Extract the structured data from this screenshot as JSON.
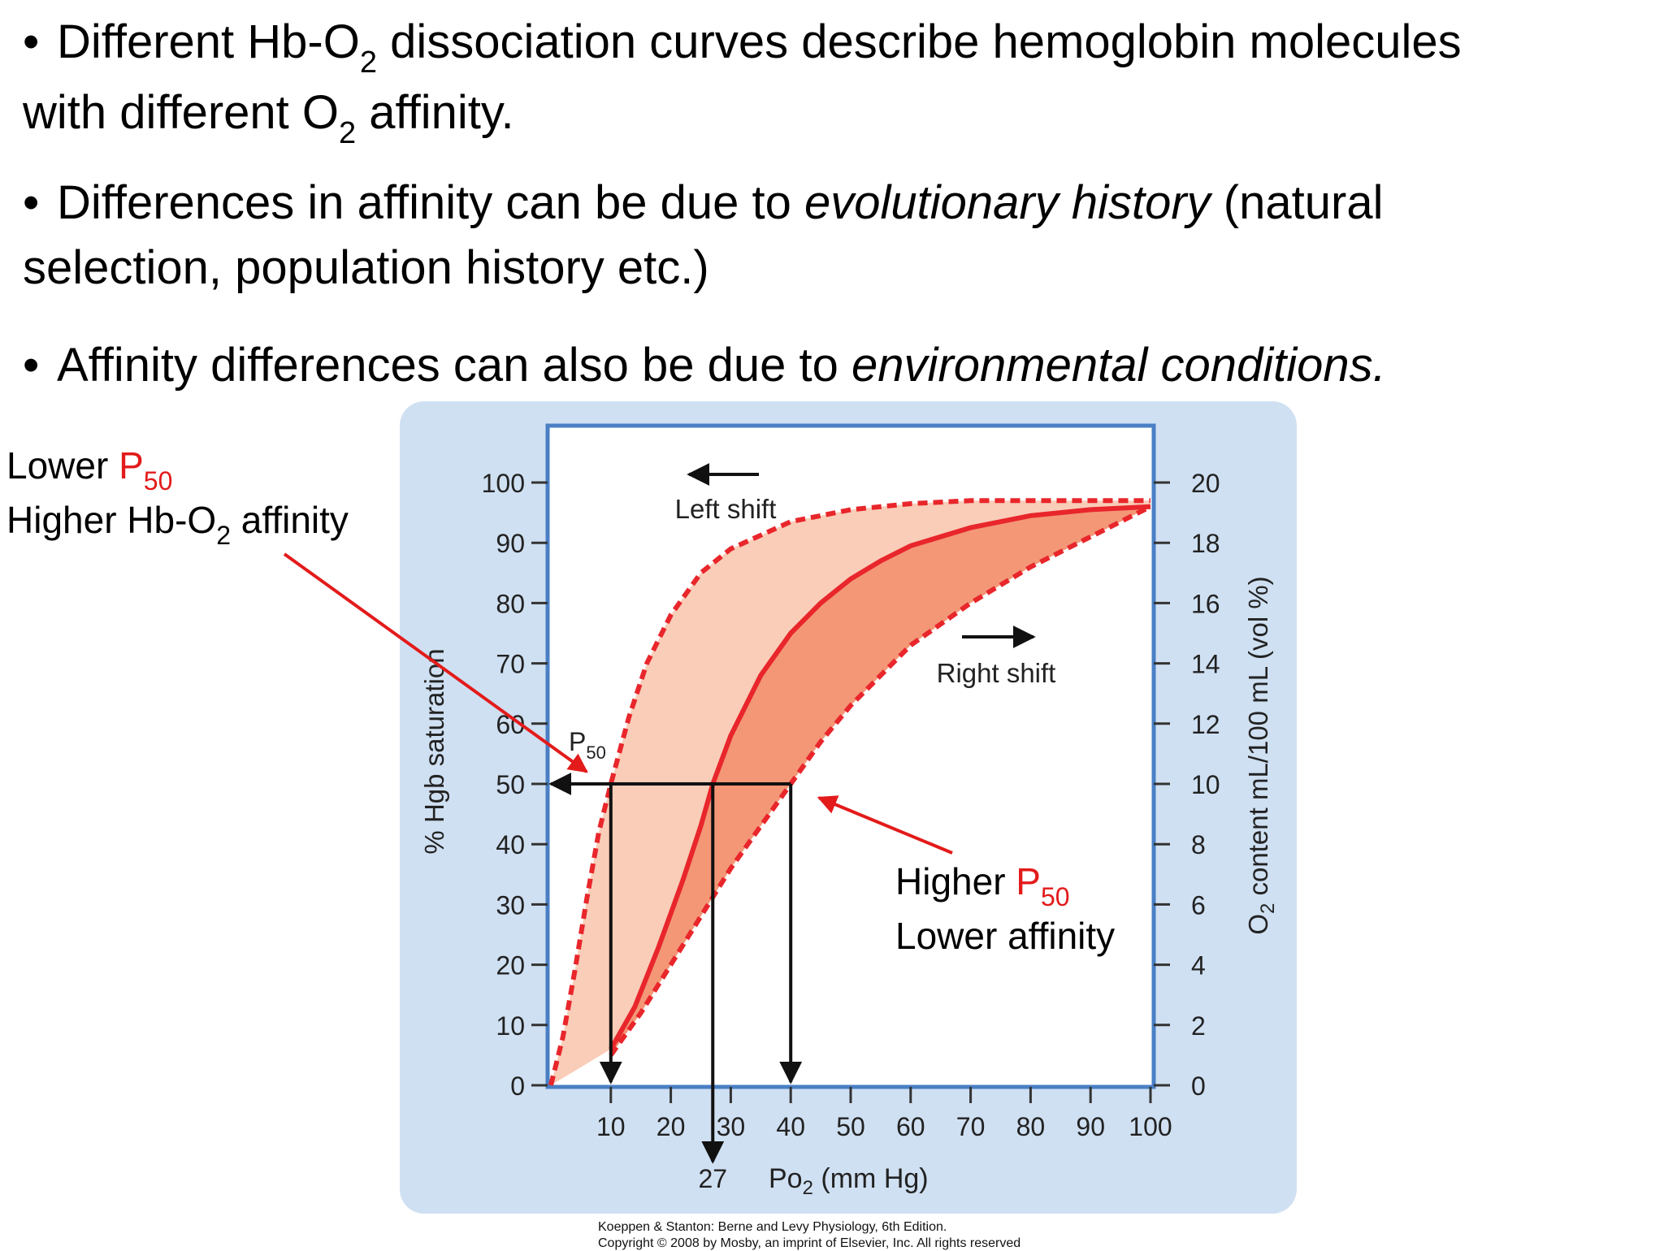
{
  "bullets": [
    {
      "a": "Different Hb-O",
      "sub": "2",
      "b": " dissociation curves describe hemoglobin molecules",
      "c": "with different O",
      "sub2": "2",
      "d": " affinity."
    },
    {
      "a": "Differences in affinity can be due to ",
      "em": "evolutionary history",
      "b": " (natural",
      "c": "selection, population history etc.)"
    },
    {
      "a": "Affinity differences can also be due to ",
      "em": "environmental conditions."
    }
  ],
  "bullet_char": "•",
  "left_callout": {
    "line1_a": "Lower ",
    "line1_red": "P",
    "line1_sub": "50",
    "line2_a": "Higher Hb-O",
    "line2_sub": "2",
    "line2_b": " affinity"
  },
  "right_callout": {
    "line1_a": "Higher ",
    "line1_red": "P",
    "line1_sub": "50",
    "line2": "Lower affinity"
  },
  "credit": {
    "line1": "Koeppen & Stanton: Berne and Levy Physiology, 6th Edition.",
    "line2": "Copyright © 2008 by Mosby, an imprint of Elsevier, Inc. All rights reserved"
  },
  "colors": {
    "accent_red": "#e31b1b",
    "curve_red": "#e8262b",
    "panel_blue": "#cfe0f2",
    "plot_border": "#4a7fc4"
  },
  "chart_data": {
    "type": "line",
    "x_label_main": "Po",
    "x_label_sub": "2",
    "x_label_rest": " (mm Hg)",
    "y_label": "% Hgb saturation",
    "y2_label_main": "O",
    "y2_label_sub": "2",
    "y2_label_rest": " content mL/100 mL (vol %)",
    "xlim": [
      0,
      100
    ],
    "ylim": [
      0,
      100
    ],
    "y2lim": [
      0,
      20
    ],
    "x_ticks": [
      10,
      20,
      30,
      40,
      50,
      60,
      70,
      80,
      90,
      100
    ],
    "y_ticks": [
      0,
      10,
      20,
      30,
      40,
      50,
      60,
      70,
      80,
      90,
      100
    ],
    "y2_ticks": [
      0,
      2,
      4,
      6,
      8,
      10,
      12,
      14,
      16,
      18,
      20
    ],
    "series": [
      {
        "name": "Left shift",
        "style": "dashed",
        "x": [
          0,
          2,
          4,
          6,
          8,
          10,
          13,
          16,
          20,
          25,
          30,
          40,
          50,
          60,
          70,
          80,
          90,
          100
        ],
        "y": [
          0,
          8,
          19,
          31,
          42,
          50,
          61,
          70,
          78,
          85,
          89,
          93.5,
          95.5,
          96.5,
          97,
          97,
          97,
          97
        ]
      },
      {
        "name": "",
        "style": "solid",
        "x": [
          10,
          14,
          18,
          22,
          25,
          27,
          30,
          35,
          40,
          45,
          50,
          55,
          60,
          70,
          80,
          90,
          100
        ],
        "y": [
          6,
          13,
          23,
          34,
          43,
          50,
          58,
          68,
          75,
          80,
          84,
          87,
          89.5,
          92.5,
          94.5,
          95.5,
          96
        ]
      },
      {
        "name": "Right shift",
        "style": "dashed",
        "x": [
          10,
          15,
          20,
          25,
          30,
          35,
          40,
          45,
          50,
          55,
          60,
          70,
          80,
          90,
          100
        ],
        "y": [
          5,
          12,
          20,
          28,
          36,
          43,
          50,
          57,
          63,
          68,
          73,
          80,
          86,
          91,
          96
        ]
      }
    ],
    "p50_marks": [
      {
        "x": 10,
        "y": 50
      },
      {
        "x": 27,
        "y": 50
      },
      {
        "x": 40,
        "y": 50
      }
    ],
    "p50_label_main": "P",
    "p50_label_sub": "50",
    "extra_tick_label": "27",
    "annotations": [
      "Left shift",
      "Right shift"
    ]
  }
}
